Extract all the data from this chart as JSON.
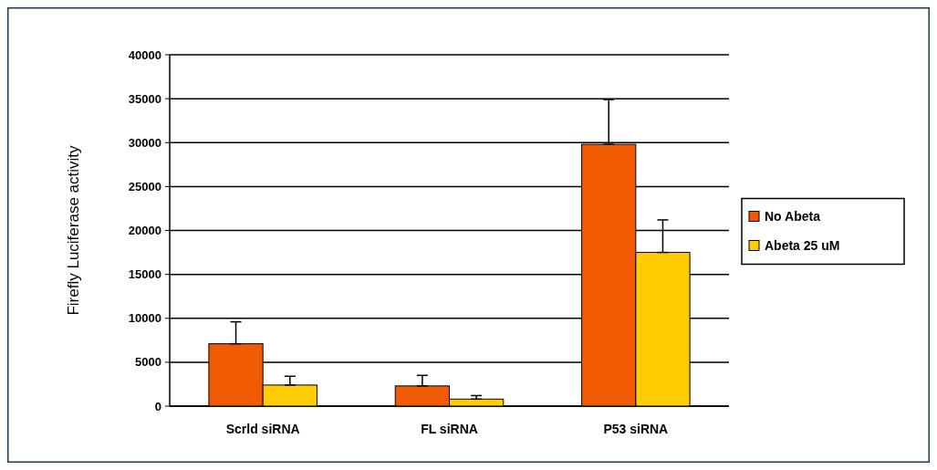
{
  "chart_data": {
    "type": "bar",
    "ylabel": "Firefly Luciferase activity",
    "categories": [
      "Scrld siRNA",
      "FL siRNA",
      "P53 siRNA"
    ],
    "series": [
      {
        "name": "No Abeta",
        "color": "#f05a00",
        "values": [
          7100,
          2300,
          29800
        ],
        "errors": [
          [
            7100,
            9600
          ],
          [
            2300,
            3500
          ],
          [
            29800,
            34900
          ]
        ]
      },
      {
        "name": "Abeta 25 uM",
        "color": "#ffcc00",
        "values": [
          2400,
          800,
          17500
        ],
        "errors": [
          [
            2400,
            3400
          ],
          [
            800,
            1200
          ],
          [
            17500,
            21200
          ]
        ]
      }
    ],
    "ylim": [
      0,
      40000
    ],
    "yticks": [
      0,
      5000,
      10000,
      15000,
      20000,
      25000,
      30000,
      35000,
      40000
    ],
    "grid": "y",
    "legend": "right"
  }
}
